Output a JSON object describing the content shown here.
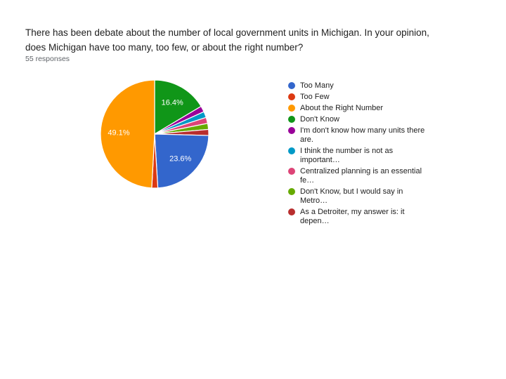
{
  "header": {
    "title_lines": [
      "There has been debate about the number of local government units in Michigan. In your opinion,",
      "does Michigan have too many, too few, or about the right number?"
    ],
    "responses": "55 responses"
  },
  "chart_data": {
    "type": "pie",
    "title": "There has been debate about the number of local government units in Michigan. In your opinion, does Michigan have too many, too few, or about the right number?",
    "total_responses": 55,
    "legend_position": "right",
    "slice_border_color": "#ffffff",
    "label_text_color": "#ffffff",
    "draw_start_index": 3,
    "draw_direction": "clockwise-from-top",
    "slices": [
      {
        "label": "Too Many",
        "pct": 23.6,
        "pct_label": "23.6%",
        "color": "#3366cc"
      },
      {
        "label": "Too Few",
        "pct": 1.8,
        "color": "#dc3912"
      },
      {
        "label": "About the Right Number",
        "pct": 49.1,
        "pct_label": "49.1%",
        "color": "#ff9900"
      },
      {
        "label": "Don't Know",
        "pct": 16.4,
        "pct_label": "16.4%",
        "color": "#109618"
      },
      {
        "label": "I'm don't know how many units there are.",
        "pct": 1.8,
        "color": "#990099"
      },
      {
        "label": "I think the number is not as important…",
        "pct": 1.8,
        "color": "#0099c6"
      },
      {
        "label": "Centralized planning is an essential fe…",
        "pct": 1.8,
        "color": "#dd4477"
      },
      {
        "label": "Don't Know, but I would say in Metro…",
        "pct": 1.8,
        "color": "#66aa00"
      },
      {
        "label": "As a Detroiter, my answer is: it depen…",
        "pct": 1.8,
        "color": "#b82e2e"
      }
    ]
  }
}
